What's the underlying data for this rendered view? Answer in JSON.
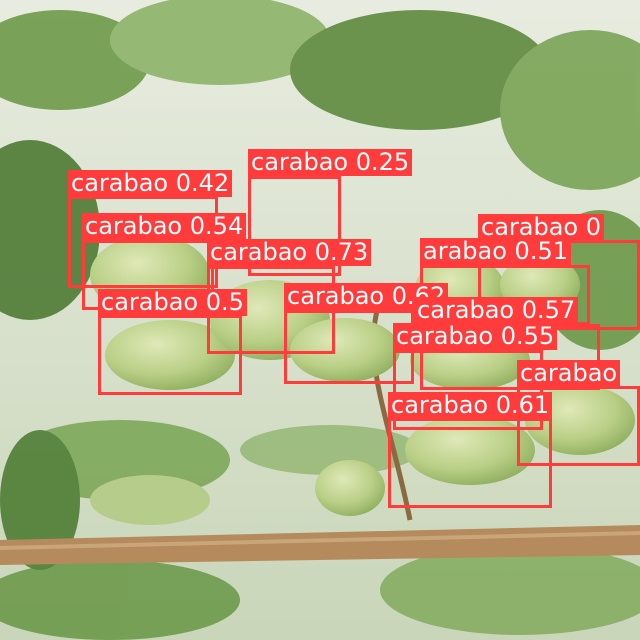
{
  "image": {
    "description_colors": {
      "box": "#ff3b3b",
      "label_text": "#ffffff"
    }
  },
  "detections": [
    {
      "label": "carabao",
      "score": "0.25"
    },
    {
      "label": "carabao",
      "score": "0.42"
    },
    {
      "label": "carabao",
      "score": "0.54"
    },
    {
      "label": "carabao",
      "score": "0"
    },
    {
      "label": "carabao",
      "score": "0.73"
    },
    {
      "label": "arabao",
      "score": "0.51"
    },
    {
      "label": "carabao",
      "score": "0.5"
    },
    {
      "label": "carabao",
      "score": "0.62"
    },
    {
      "label": "carabao",
      "score": "0.57"
    },
    {
      "label": "carabao",
      "score": "0.55"
    },
    {
      "label": "carabao",
      "score": ""
    },
    {
      "label": "carabao",
      "score": "0.61"
    }
  ]
}
